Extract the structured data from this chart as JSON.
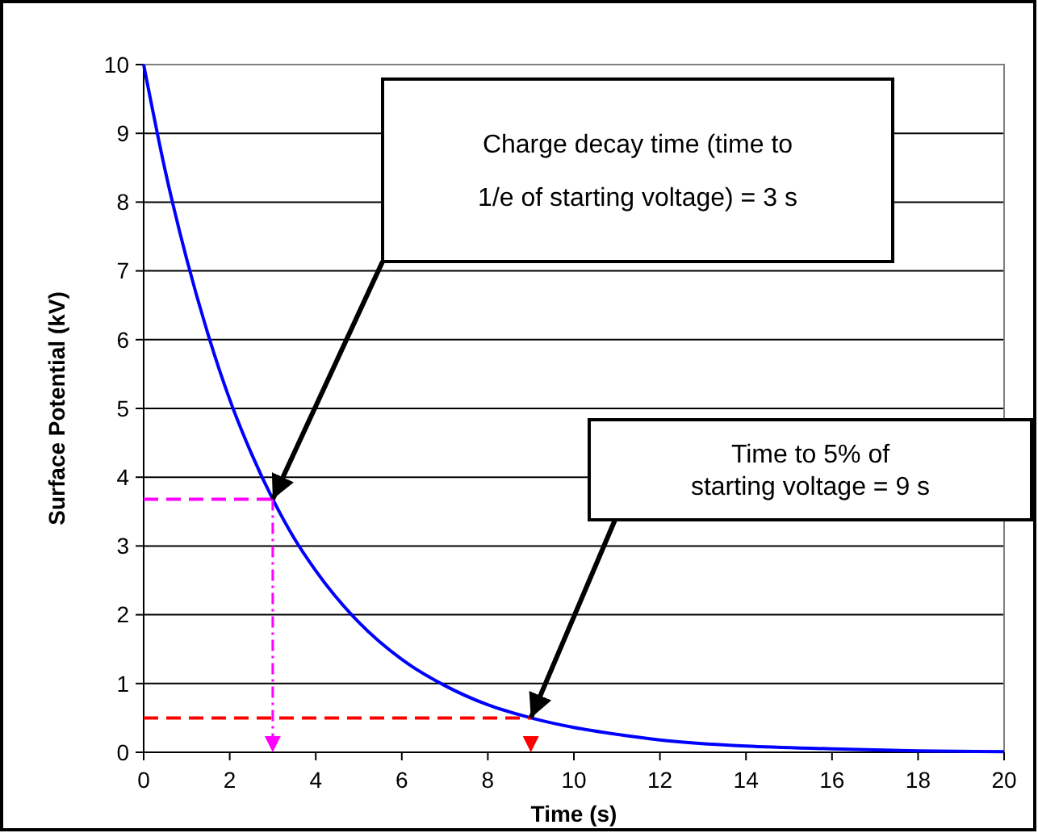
{
  "chart_data": {
    "type": "line",
    "xlabel": "Time (s)",
    "ylabel": "Surface Potential (kV)",
    "xlim": [
      0,
      20
    ],
    "xticks": [
      0,
      2,
      4,
      6,
      8,
      10,
      12,
      14,
      16,
      18,
      20
    ],
    "ylim": [
      0,
      10
    ],
    "yticks": [
      0,
      1,
      2,
      3,
      4,
      5,
      6,
      7,
      8,
      9,
      10
    ],
    "grid": "y",
    "marker": "none",
    "series": [
      {
        "color": "#0000ff",
        "line_style": "solid",
        "x": [
          0,
          0.5,
          1,
          1.5,
          2,
          2.5,
          3,
          3.5,
          4,
          5,
          6,
          7,
          8,
          9,
          10,
          11,
          12,
          14,
          16,
          18,
          20
        ],
        "values": [
          10,
          8.46,
          7.17,
          6.07,
          5.13,
          4.35,
          3.68,
          3.11,
          2.64,
          1.89,
          1.35,
          0.97,
          0.69,
          0.5,
          0.36,
          0.26,
          0.18,
          0.09,
          0.05,
          0.02,
          0.01
        ]
      },
      {
        "color": "#ff00ff",
        "line_style": "dashed",
        "x": [
          0,
          3
        ],
        "values": [
          3.68,
          3.68
        ]
      },
      {
        "color": "#ff0000",
        "line_style": "dashed",
        "x": [
          0,
          9
        ],
        "values": [
          0.5,
          0.5
        ]
      }
    ],
    "annotations": [
      "Charge decay time (time to 1/e of starting voltage) = 3 s",
      "Time to 5% of starting voltage = 9 s"
    ]
  }
}
